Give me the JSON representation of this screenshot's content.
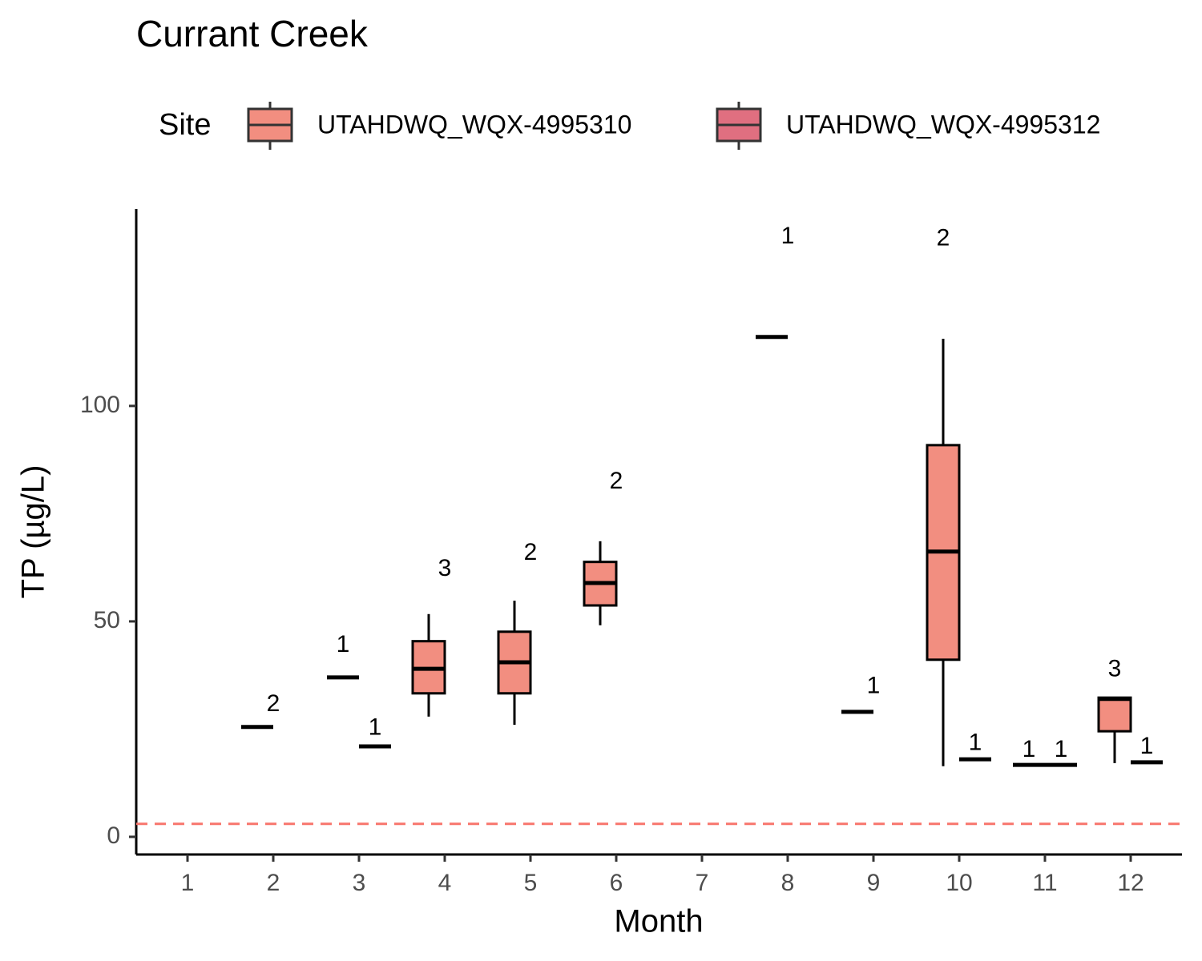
{
  "chart_data": {
    "type": "boxplot",
    "title": "Currant Creek",
    "x_label": "Month",
    "y_label": "TP (µg/L)",
    "legend_title": "Site",
    "legend_position": "top",
    "categories": [
      "1",
      "2",
      "3",
      "4",
      "5",
      "6",
      "7",
      "8",
      "9",
      "10",
      "11",
      "12"
    ],
    "ylim": [
      -4.1,
      145.7
    ],
    "yticks": [
      0,
      50,
      100
    ],
    "hline": 3,
    "hline_color": "#F8766D",
    "series": [
      {
        "name": "UTAHDWQ_WQX-4995310",
        "color": "#F28E80",
        "min": [
          null,
          25.5,
          37,
          27.9,
          26,
          49.1,
          null,
          116,
          29,
          16.4,
          16.7,
          17.1
        ],
        "q1": [
          null,
          25.5,
          37,
          33.3,
          33.3,
          53.7,
          null,
          116,
          29,
          41.1,
          16.7,
          24.5
        ],
        "median": [
          null,
          25.5,
          37,
          39,
          40.5,
          58.9,
          null,
          116,
          29,
          66.2,
          16.7,
          32
        ],
        "q3": [
          null,
          25.5,
          37,
          45.4,
          47.6,
          63.8,
          null,
          116,
          29,
          90.9,
          16.7,
          32.3
        ],
        "max": [
          null,
          25.5,
          37,
          51.7,
          54.8,
          68.6,
          null,
          116,
          29,
          115.6,
          16.7,
          32.3
        ],
        "n": [
          null,
          2,
          1,
          3,
          2,
          2,
          null,
          1,
          1,
          2,
          1,
          3
        ]
      },
      {
        "name": "UTAHDWQ_WQX-4995312",
        "color": "#E06F80",
        "min": [
          null,
          null,
          21,
          null,
          null,
          null,
          null,
          null,
          null,
          18,
          16.7,
          17.3
        ],
        "q1": [
          null,
          null,
          21,
          null,
          null,
          null,
          null,
          null,
          null,
          18,
          16.7,
          17.3
        ],
        "median": [
          null,
          null,
          21,
          null,
          null,
          null,
          null,
          null,
          null,
          18,
          16.7,
          17.3
        ],
        "q3": [
          null,
          null,
          21,
          null,
          null,
          null,
          null,
          null,
          null,
          18,
          16.7,
          17.3
        ],
        "max": [
          null,
          null,
          21,
          null,
          null,
          null,
          null,
          null,
          null,
          18,
          16.7,
          17.3
        ],
        "n": [
          null,
          null,
          1,
          null,
          null,
          null,
          null,
          null,
          null,
          1,
          1,
          1
        ]
      }
    ]
  }
}
